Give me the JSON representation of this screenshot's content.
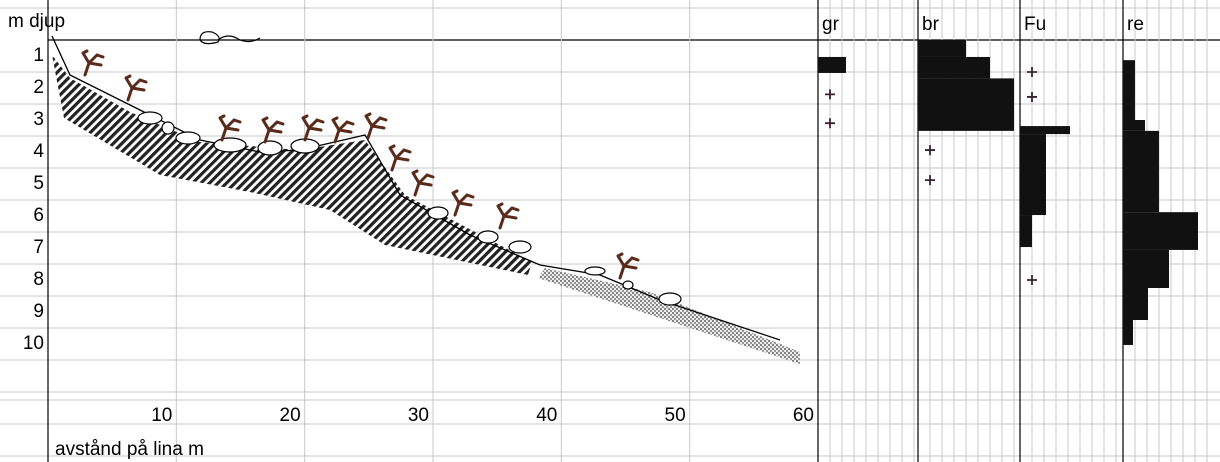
{
  "chart_data": {
    "type": "depth-profile",
    "depth_label": "m djup",
    "distance_label": "avstånd på lina m",
    "depth_ticks": [
      1,
      2,
      3,
      4,
      5,
      6,
      7,
      8,
      9,
      10
    ],
    "distance_ticks": [
      10,
      20,
      30,
      40,
      50,
      60
    ],
    "species": [
      {
        "name": "gr",
        "bars": [
          [
            1.53,
            2.03,
            1.4
          ]
        ],
        "plus": [
          2.7,
          3.6
        ]
      },
      {
        "name": "br",
        "bars": [
          [
            1,
            1.53,
            2.4
          ],
          [
            1.53,
            2.2,
            3.6
          ],
          [
            2.2,
            3.84,
            4.8
          ]
        ],
        "plus": [
          4.44,
          5.38
        ]
      },
      {
        "name": "Fu",
        "bars": [
          [
            3.69,
            3.94,
            2.5
          ],
          [
            3.94,
            6.47,
            1.3
          ],
          [
            6.47,
            7.47,
            0.6
          ]
        ],
        "plus": [
          2,
          2.78,
          8.5
        ]
      },
      {
        "name": "re",
        "bars": [
          [
            1.63,
            3.5,
            0.6
          ],
          [
            3.5,
            3.84,
            1.1
          ],
          [
            3.84,
            6.38,
            1.8
          ],
          [
            6.38,
            7.56,
            3.75
          ],
          [
            7.56,
            8.75,
            2.3
          ],
          [
            8.75,
            9.75,
            1.25
          ],
          [
            9.75,
            10.53,
            0.5
          ]
        ]
      }
    ]
  }
}
